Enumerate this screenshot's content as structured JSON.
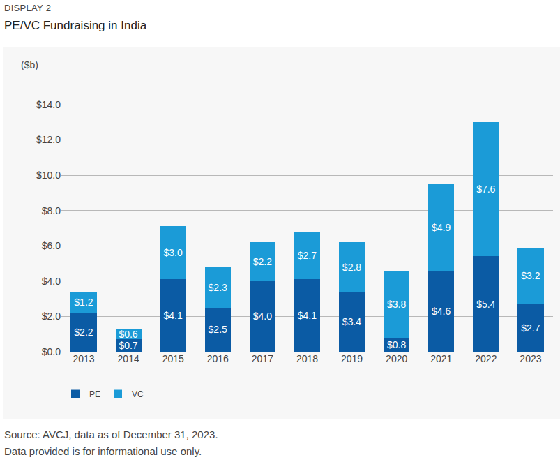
{
  "chart_data": {
    "type": "bar",
    "subtitle": "DISPLAY 2",
    "title": "PE/VC Fundraising in India",
    "ylabel": "($b)",
    "annotations": [
      "Source: AVCJ, data as of December 31, 2023.",
      "Data provided is for informational use only."
    ],
    "categories": [
      "2013",
      "2014",
      "2015",
      "2016",
      "2017",
      "2018",
      "2019",
      "2020",
      "2021",
      "2022",
      "2023"
    ],
    "series": [
      {
        "name": "PE",
        "color": "#0b5ba4",
        "values": [
          2.2,
          0.7,
          4.1,
          2.5,
          4.0,
          4.1,
          3.4,
          0.8,
          4.6,
          5.4,
          2.7
        ],
        "value_labels": [
          "$2.2",
          "$0.7",
          "$4.1",
          "$2.5",
          "$4.0",
          "$4.1",
          "$3.4",
          "$0.8",
          "$4.6",
          "$5.4",
          "$2.7"
        ]
      },
      {
        "name": "VC",
        "color": "#1b9bd7",
        "values": [
          1.2,
          0.6,
          3.0,
          2.3,
          2.2,
          2.7,
          2.8,
          3.8,
          4.9,
          7.6,
          3.2
        ],
        "value_labels": [
          "$1.2",
          "$0.6",
          "$3.0",
          "$2.3",
          "$2.2",
          "$2.7",
          "$2.8",
          "$3.8",
          "$4.9",
          "$7.6",
          "$3.2"
        ]
      }
    ],
    "stacked": true,
    "data_labels": true,
    "ylim": [
      0,
      14
    ],
    "yticks": [
      {
        "value": 0,
        "label": "$0.0"
      },
      {
        "value": 2,
        "label": "$2.0"
      },
      {
        "value": 4,
        "label": "$4.0"
      },
      {
        "value": 6,
        "label": "$6.0"
      },
      {
        "value": 8,
        "label": "$8.0"
      },
      {
        "value": 10,
        "label": "$10.0"
      },
      {
        "value": 12,
        "label": "$12.0"
      },
      {
        "value": 14,
        "label": "$14.0"
      }
    ],
    "grid": true,
    "legend": "bottom-left"
  }
}
